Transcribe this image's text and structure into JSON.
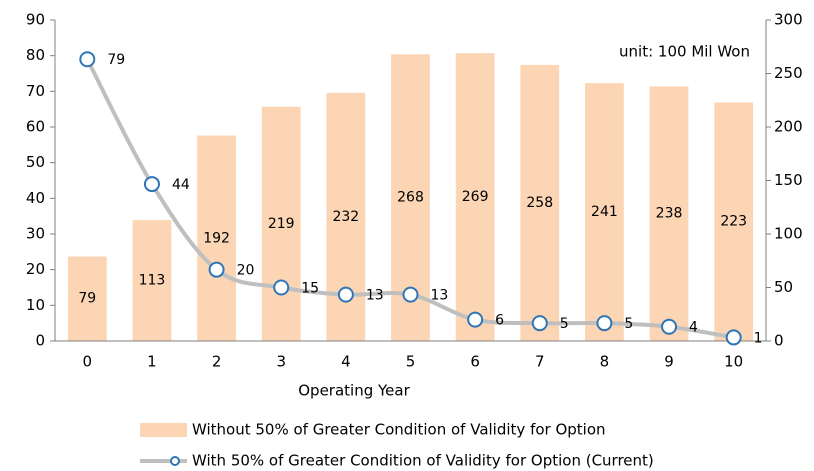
{
  "chart_data": {
    "type": "bar-line",
    "xlabel": "Operating Year",
    "annotation": "unit: 100 Mil Won",
    "categories": [
      "0",
      "1",
      "2",
      "3",
      "4",
      "5",
      "6",
      "7",
      "8",
      "9",
      "10"
    ],
    "series": [
      {
        "name": "Without 50% of Greater Condition of Validity for Option",
        "type": "bar",
        "axis": "y2",
        "color": "#fcd5b4",
        "values": [
          79,
          113,
          192,
          219,
          232,
          268,
          269,
          258,
          241,
          238,
          223
        ]
      },
      {
        "name": "With 50% of Greater Condition of Validity for Option (Current)",
        "type": "line",
        "axis": "y",
        "color": "#bfbfbf",
        "marker_color": "#2e75b6",
        "values": [
          79,
          44,
          20,
          15,
          13,
          13,
          6,
          5,
          5,
          4,
          1
        ]
      }
    ],
    "ylim": [
      0,
      90
    ],
    "yticks": [
      0,
      10,
      20,
      30,
      40,
      50,
      60,
      70,
      80,
      90
    ],
    "y2lim": [
      0,
      300
    ],
    "y2ticks": [
      0,
      50,
      100,
      150,
      200,
      250,
      300
    ]
  }
}
